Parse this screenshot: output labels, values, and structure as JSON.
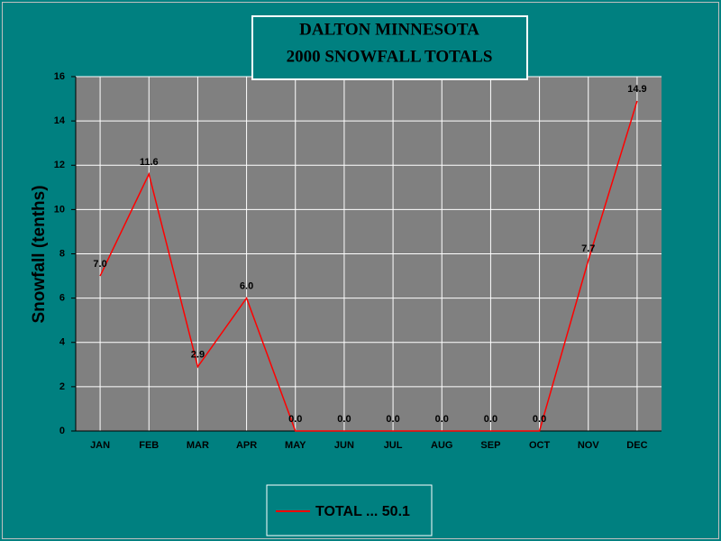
{
  "chart_data": {
    "type": "line",
    "title": [
      "DALTON MINNESOTA",
      "2000 SNOWFALL TOTALS"
    ],
    "y_label": "Snowfall (tenths)",
    "categories": [
      "JAN",
      "FEB",
      "MAR",
      "APR",
      "MAY",
      "JUN",
      "JUL",
      "AUG",
      "SEP",
      "OCT",
      "NOV",
      "DEC"
    ],
    "series": [
      {
        "name": "TOTAL ... 50.1",
        "color": "#ff0000",
        "values": [
          7.0,
          11.6,
          2.9,
          6.0,
          0,
          0,
          0,
          0,
          0,
          0,
          7.7,
          14.9
        ],
        "value_labels": [
          "7.0",
          "11.6",
          "2.9",
          "6.0",
          "0.0",
          "0.0",
          "0.0",
          "0.0",
          "0.0",
          "0.0",
          "7.7",
          "14.9"
        ]
      }
    ],
    "ylim": [
      0,
      16
    ],
    "yticks": [
      0,
      2,
      4,
      6,
      8,
      10,
      12,
      14,
      16
    ],
    "grid": true
  }
}
